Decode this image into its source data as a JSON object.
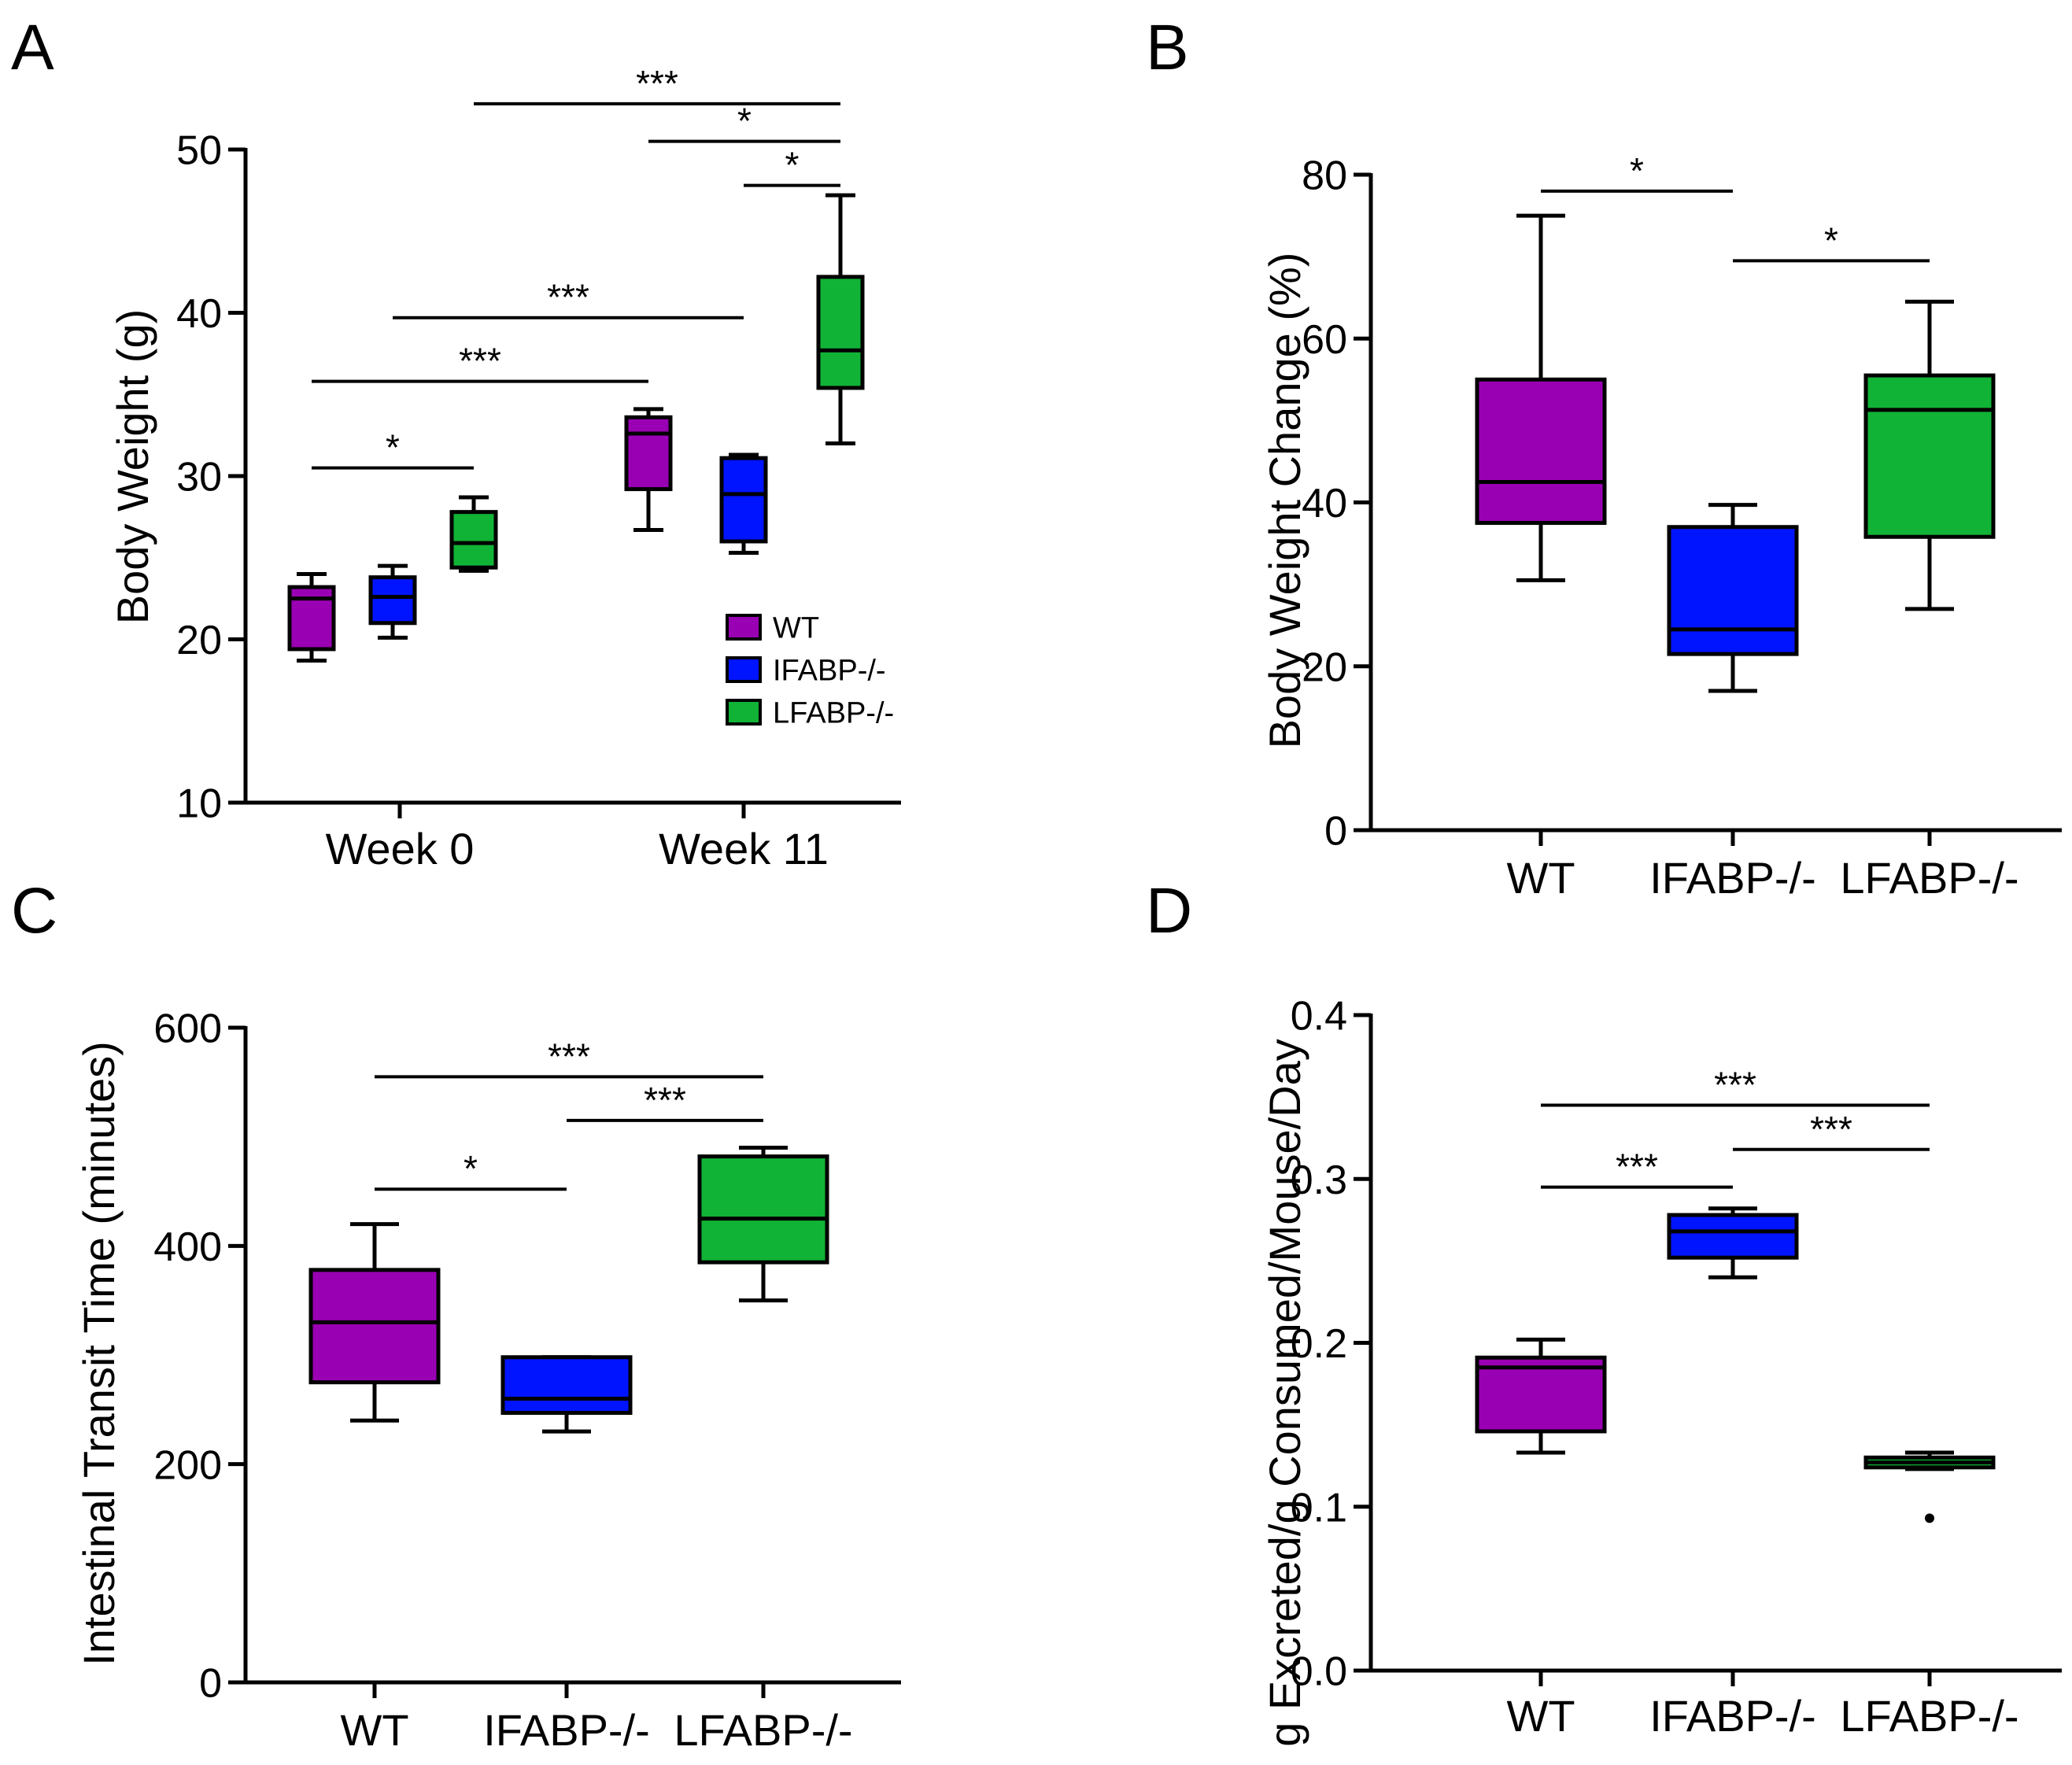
{
  "figure": {
    "background": "#ffffff",
    "axis_color": "#000000"
  },
  "colors": {
    "WT": "#9900b3",
    "IFABP-/-": "#0014ff",
    "LFABP-/-": "#11b336"
  },
  "chart_data": [
    {
      "id": "A",
      "panel_label": "A",
      "type": "box",
      "title": "",
      "xlabel": "",
      "ylabel": "Body Weight (g)",
      "ylim": [
        10,
        50
      ],
      "yticks": [
        10,
        20,
        30,
        40,
        50
      ],
      "ytick_labels": [
        "10",
        "20",
        "30",
        "40",
        "50"
      ],
      "groups": [
        "Week 0",
        "Week 11"
      ],
      "legend": {
        "placement": "lower-right",
        "entries": [
          "WT",
          "IFABP-/-",
          "LFABP-/-"
        ]
      },
      "series": [
        {
          "name": "WT",
          "group": "Week 0",
          "min": 18.7,
          "q1": 19.4,
          "median": 22.5,
          "q3": 23.2,
          "max": 24.0,
          "outliers": []
        },
        {
          "name": "IFABP-/-",
          "group": "Week 0",
          "min": 20.1,
          "q1": 21.0,
          "median": 22.6,
          "q3": 23.8,
          "max": 24.5,
          "outliers": []
        },
        {
          "name": "LFABP-/-",
          "group": "Week 0",
          "min": 24.2,
          "q1": 24.4,
          "median": 25.9,
          "q3": 27.8,
          "max": 28.7,
          "outliers": []
        },
        {
          "name": "WT",
          "group": "Week 11",
          "min": 26.7,
          "q1": 29.2,
          "median": 32.6,
          "q3": 33.6,
          "max": 34.1,
          "outliers": []
        },
        {
          "name": "IFABP-/-",
          "group": "Week 11",
          "min": 25.3,
          "q1": 26.0,
          "median": 28.9,
          "q3": 31.1,
          "max": 31.3,
          "outliers": []
        },
        {
          "name": "LFABP-/-",
          "group": "Week 11",
          "min": 32.0,
          "q1": 35.4,
          "median": 37.7,
          "q3": 42.2,
          "max": 47.2,
          "outliers": []
        }
      ],
      "significance": [
        {
          "from": "WT|Week 0",
          "to": "LFABP-/-|Week 0",
          "level": 30.5,
          "label": "*"
        },
        {
          "from": "WT|Week 0",
          "to": "WT|Week 11",
          "level": 35.8,
          "label": "***"
        },
        {
          "from": "IFABP-/-|Week 0",
          "to": "IFABP-/-|Week 11",
          "level": 39.7,
          "label": "***"
        },
        {
          "from": "IFABP-/-|Week 11",
          "to": "LFABP-/-|Week 11",
          "level": 47.8,
          "label": "*"
        },
        {
          "from": "WT|Week 11",
          "to": "LFABP-/-|Week 11",
          "level": 50.5,
          "label": "*"
        },
        {
          "from": "LFABP-/-|Week 0",
          "to": "LFABP-/-|Week 11",
          "level": 52.8,
          "label": "***"
        }
      ]
    },
    {
      "id": "B",
      "panel_label": "B",
      "type": "box",
      "title": "",
      "xlabel": "",
      "ylabel": "Body Weight Change (%)",
      "ylim": [
        0,
        80
      ],
      "yticks": [
        0,
        20,
        40,
        60,
        80
      ],
      "ytick_labels": [
        "0",
        "20",
        "40",
        "60",
        "80"
      ],
      "categories": [
        "WT",
        "IFABP-/-",
        "LFABP-/-"
      ],
      "series": [
        {
          "name": "WT",
          "min": 30.5,
          "q1": 37.5,
          "median": 42.5,
          "q3": 55.0,
          "max": 75.0,
          "outliers": []
        },
        {
          "name": "IFABP-/-",
          "min": 17.0,
          "q1": 21.5,
          "median": 24.5,
          "q3": 37.0,
          "max": 39.7,
          "outliers": []
        },
        {
          "name": "LFABP-/-",
          "min": 27.0,
          "q1": 35.8,
          "median": 51.3,
          "q3": 55.5,
          "max": 64.5,
          "outliers": []
        }
      ],
      "significance": [
        {
          "from": "WT",
          "to": "IFABP-/-",
          "level": 78.0,
          "label": "*"
        },
        {
          "from": "IFABP-/-",
          "to": "LFABP-/-",
          "level": 69.5,
          "label": "*"
        }
      ]
    },
    {
      "id": "C",
      "panel_label": "C",
      "type": "box",
      "title": "",
      "xlabel": "",
      "ylabel": "Intestinal Transit Time (minutes)",
      "ylim": [
        0,
        600
      ],
      "yticks": [
        0,
        200,
        400,
        600
      ],
      "ytick_labels": [
        "0",
        "200",
        "400",
        "600"
      ],
      "categories": [
        "WT",
        "IFABP-/-",
        "LFABP-/-"
      ],
      "series": [
        {
          "name": "WT",
          "min": 240,
          "q1": 275,
          "median": 330,
          "q3": 378,
          "max": 420,
          "outliers": []
        },
        {
          "name": "IFABP-/-",
          "min": 230,
          "q1": 247,
          "median": 260,
          "q3": 298,
          "max": 298,
          "outliers": []
        },
        {
          "name": "LFABP-/-",
          "min": 350,
          "q1": 385,
          "median": 425,
          "q3": 482,
          "max": 490,
          "outliers": []
        }
      ],
      "significance": [
        {
          "from": "WT",
          "to": "IFABP-/-",
          "level": 452,
          "label": "*"
        },
        {
          "from": "IFABP-/-",
          "to": "LFABP-/-",
          "level": 515,
          "label": "***"
        },
        {
          "from": "WT",
          "to": "LFABP-/-",
          "level": 555,
          "label": "***"
        }
      ]
    },
    {
      "id": "D",
      "panel_label": "D",
      "type": "box",
      "title": "",
      "xlabel": "",
      "ylabel": "g Excreted/g Consumed/Mouse/Day",
      "ylim": [
        0.0,
        0.4
      ],
      "yticks": [
        0.0,
        0.1,
        0.2,
        0.3,
        0.4
      ],
      "ytick_labels": [
        "0.0",
        "0.1",
        "0.2",
        "0.3",
        "0.4"
      ],
      "categories": [
        "WT",
        "IFABP-/-",
        "LFABP-/-"
      ],
      "series": [
        {
          "name": "WT",
          "min": 0.133,
          "q1": 0.146,
          "median": 0.185,
          "q3": 0.191,
          "max": 0.202,
          "outliers": []
        },
        {
          "name": "IFABP-/-",
          "min": 0.24,
          "q1": 0.252,
          "median": 0.268,
          "q3": 0.278,
          "max": 0.282,
          "outliers": []
        },
        {
          "name": "LFABP-/-",
          "min": 0.123,
          "q1": 0.124,
          "median": 0.127,
          "q3": 0.13,
          "max": 0.133,
          "outliers": [
            0.093
          ]
        }
      ],
      "significance": [
        {
          "from": "WT",
          "to": "IFABP-/-",
          "level": 0.295,
          "label": "***"
        },
        {
          "from": "IFABP-/-",
          "to": "LFABP-/-",
          "level": 0.318,
          "label": "***"
        },
        {
          "from": "WT",
          "to": "LFABP-/-",
          "level": 0.345,
          "label": "***"
        }
      ]
    }
  ]
}
